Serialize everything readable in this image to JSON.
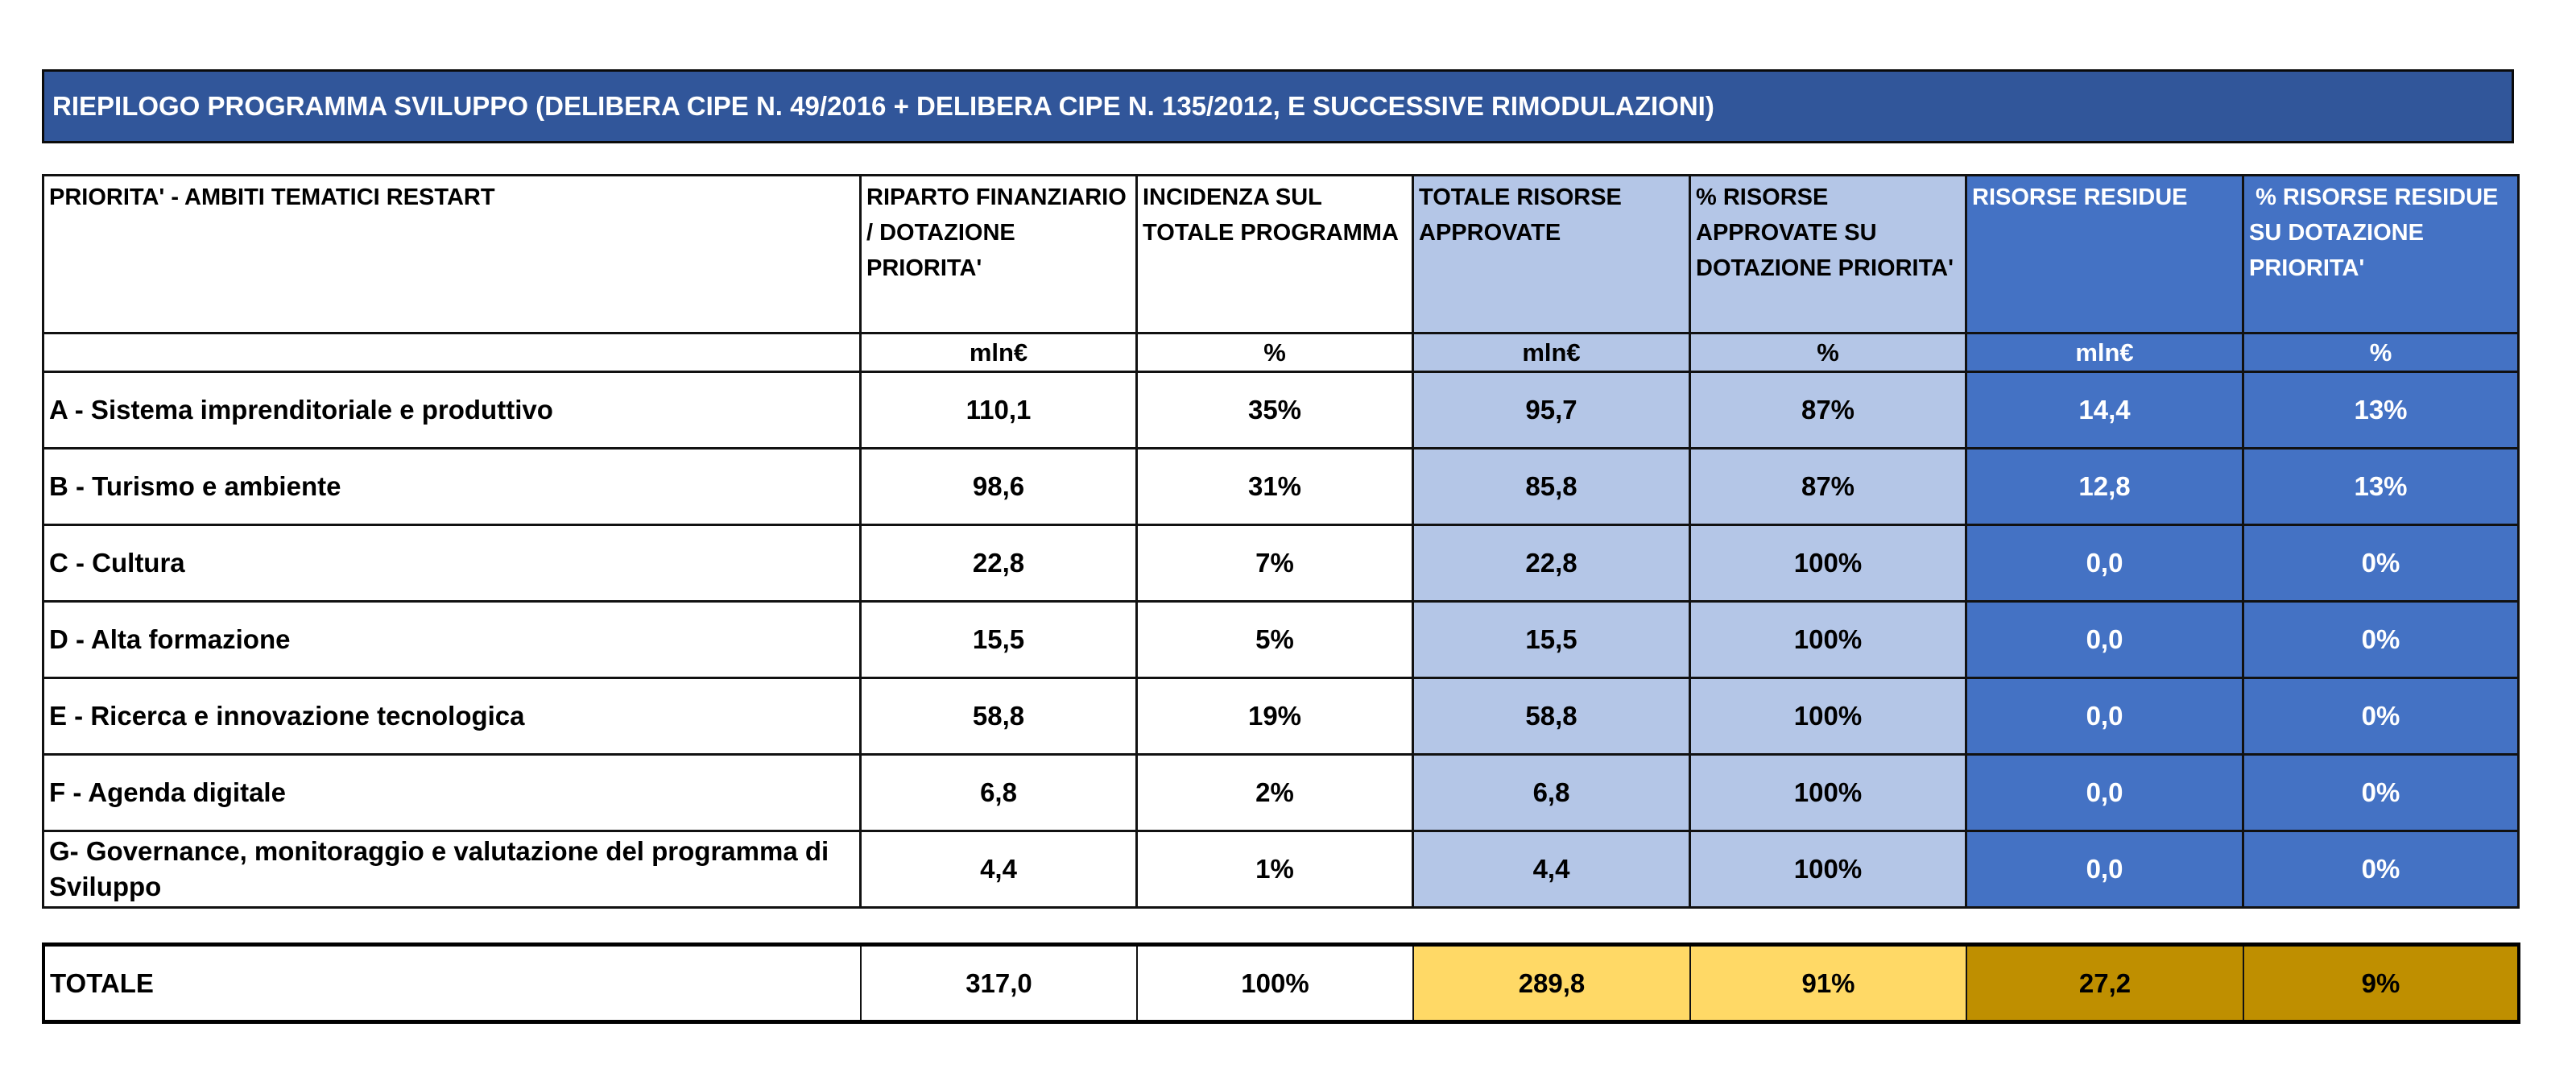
{
  "title": "RIEPILOGO PROGRAMMA SVILUPPO (DELIBERA CIPE N. 49/2016 + DELIBERA CIPE N. 135/2012, E SUCCESSIVE RIMODULAZIONI)",
  "colors": {
    "title_bg": "#31569A",
    "approved_bg": "#B4C6E7",
    "residual_bg": "#4472C4",
    "total_approved_bg": "#FFD966",
    "total_residual_bg": "#BF8F00"
  },
  "headers": [
    "PRIORITA' - AMBITI TEMATICI RESTART",
    "RIPARTO FINANZIARIO / DOTAZIONE PRIORITA'",
    "INCIDENZA SUL TOTALE PROGRAMMA",
    "TOTALE RISORSE APPROVATE",
    "% RISORSE APPROVATE SU DOTAZIONE PRIORITA'",
    "RISORSE RESIDUE",
    " % RISORSE RESIDUE SU DOTAZIONE PRIORITA'"
  ],
  "units": [
    "",
    "mln€",
    "%",
    "mln€",
    "%",
    "mln€",
    "%"
  ],
  "rows": [
    {
      "label": "A - Sistema imprenditoriale e produttivo",
      "riparto": "110,1",
      "incidenza": "35%",
      "approvate": "95,7",
      "pct_approvate": "87%",
      "residue": "14,4",
      "pct_residue": "13%"
    },
    {
      "label": "B - Turismo e ambiente",
      "riparto": "98,6",
      "incidenza": "31%",
      "approvate": "85,8",
      "pct_approvate": "87%",
      "residue": "12,8",
      "pct_residue": "13%"
    },
    {
      "label": "C - Cultura",
      "riparto": "22,8",
      "incidenza": "7%",
      "approvate": "22,8",
      "pct_approvate": "100%",
      "residue": "0,0",
      "pct_residue": "0%"
    },
    {
      "label": "D - Alta formazione",
      "riparto": "15,5",
      "incidenza": "5%",
      "approvate": "15,5",
      "pct_approvate": "100%",
      "residue": "0,0",
      "pct_residue": "0%"
    },
    {
      "label": "E - Ricerca e innovazione tecnologica",
      "riparto": "58,8",
      "incidenza": "19%",
      "approvate": "58,8",
      "pct_approvate": "100%",
      "residue": "0,0",
      "pct_residue": "0%"
    },
    {
      "label": "F - Agenda digitale",
      "riparto": "6,8",
      "incidenza": "2%",
      "approvate": "6,8",
      "pct_approvate": "100%",
      "residue": "0,0",
      "pct_residue": "0%"
    },
    {
      "label": "G- Governance, monitoraggio e valutazione del programma di Sviluppo",
      "riparto": "4,4",
      "incidenza": "1%",
      "approvate": "4,4",
      "pct_approvate": "100%",
      "residue": "0,0",
      "pct_residue": "0%"
    }
  ],
  "total": {
    "label": "TOTALE",
    "riparto": "317,0",
    "incidenza": "100%",
    "approvate": "289,8",
    "pct_approvate": "91%",
    "residue": "27,2",
    "pct_residue": "9%"
  }
}
